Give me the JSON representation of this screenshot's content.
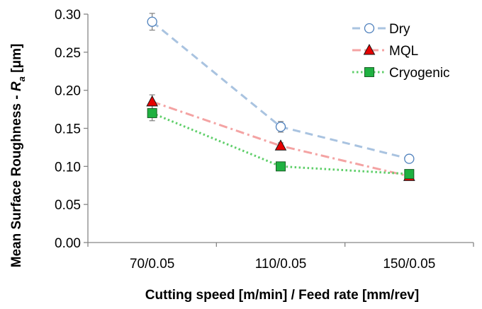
{
  "chart_data": {
    "type": "line",
    "categories": [
      "70/0.05",
      "110/0.05",
      "150/0.05"
    ],
    "series": [
      {
        "name": "Dry",
        "values": [
          0.29,
          0.152,
          0.11
        ],
        "errors": [
          0.011,
          0.007,
          0.003
        ],
        "color": "#a9c3e0",
        "marker": "circle-open",
        "dash": "dashed"
      },
      {
        "name": "MQL",
        "values": [
          0.185,
          0.127,
          0.087
        ],
        "errors": [
          0.009,
          0.004,
          0.002
        ],
        "color": "#f4a3a3",
        "marker": "triangle-red",
        "dash": "dash-dot"
      },
      {
        "name": "Cryogenic",
        "values": [
          0.17,
          0.1,
          0.09
        ],
        "errors": [
          0.01,
          0.003,
          0.002
        ],
        "color": "#5fcf6a",
        "marker": "square-green",
        "dash": "dotted"
      }
    ],
    "ylim": [
      0,
      0.3
    ],
    "yticks": [
      "0.00",
      "0.05",
      "0.10",
      "0.15",
      "0.20",
      "0.25",
      "0.30"
    ],
    "xlabel": "Cutting speed [m/min] / Feed rate [mm/rev]",
    "ylabel_main": "Mean Surface Roughness - ",
    "ylabel_symbol": "R",
    "ylabel_sub": "a",
    "ylabel_unit": " [μm]",
    "legend_position": "top-right",
    "grid": false
  }
}
